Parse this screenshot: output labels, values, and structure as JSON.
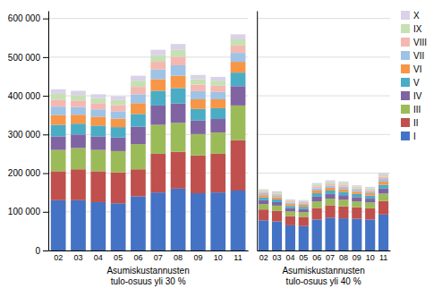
{
  "chart_data": [
    {
      "type": "bar",
      "stacked": true,
      "grid": true,
      "xlabel": "Asumiskustannusten\ntulo-osuus yli 30 %",
      "categories": [
        "02",
        "03",
        "04",
        "05",
        "06",
        "07",
        "08",
        "09",
        "10",
        "11"
      ],
      "series": [
        {
          "name": "I",
          "color": "#4472C4",
          "values": [
            130000,
            130000,
            125000,
            122000,
            140000,
            150000,
            160000,
            148000,
            150000,
            155000
          ]
        },
        {
          "name": "II",
          "color": "#C0504D",
          "values": [
            75000,
            80000,
            80000,
            80000,
            70000,
            100000,
            95000,
            98000,
            100000,
            130000
          ]
        },
        {
          "name": "III",
          "color": "#9BBB59",
          "values": [
            55000,
            55000,
            55000,
            55000,
            65000,
            75000,
            75000,
            55000,
            55000,
            90000
          ]
        },
        {
          "name": "IV",
          "color": "#8064A2",
          "values": [
            35000,
            35000,
            35000,
            35000,
            45000,
            50000,
            50000,
            35000,
            35000,
            50000
          ]
        },
        {
          "name": "V",
          "color": "#4BACC6",
          "values": [
            30000,
            28000,
            28000,
            27000,
            33000,
            38000,
            40000,
            30000,
            28000,
            35000
          ]
        },
        {
          "name": "VI",
          "color": "#F79646",
          "values": [
            25000,
            23000,
            23000,
            22000,
            28000,
            30000,
            32000,
            25000,
            23000,
            28000
          ]
        },
        {
          "name": "VII",
          "color": "#9DC3E6",
          "values": [
            22000,
            20000,
            19000,
            19000,
            23000,
            25000,
            27000,
            21000,
            19000,
            23000
          ]
        },
        {
          "name": "VIII",
          "color": "#F4B8B0",
          "values": [
            18000,
            17000,
            16000,
            16000,
            19000,
            20000,
            22000,
            17000,
            16000,
            19000
          ]
        },
        {
          "name": "IX",
          "color": "#C6E0B4",
          "values": [
            15000,
            14000,
            13000,
            13000,
            16000,
            17000,
            18000,
            14000,
            13000,
            16000
          ]
        },
        {
          "name": "X",
          "color": "#D9D2E9",
          "values": [
            12000,
            11000,
            10000,
            10000,
            13000,
            14000,
            15000,
            11000,
            10000,
            13000
          ]
        }
      ],
      "ylim": [
        0,
        620000
      ],
      "yticks": [
        0,
        {
          "value": 100000,
          "label": "100 000"
        },
        {
          "value": 200000,
          "label": "200 000"
        },
        {
          "value": 300000,
          "label": "300 000"
        },
        {
          "value": 400000,
          "label": "400 000"
        },
        {
          "value": 500000,
          "label": "500 000"
        },
        {
          "value": 600000,
          "label": "600 000"
        }
      ]
    },
    {
      "type": "bar",
      "stacked": true,
      "grid": true,
      "tick_labels": "x",
      "legend": "right",
      "xlabel": "Asumiskustannusten\ntulo-osuus yli 40 %",
      "categories": [
        "02",
        "03",
        "04",
        "05",
        "06",
        "07",
        "08",
        "09",
        "10",
        "11"
      ],
      "series": [
        {
          "name": "I",
          "color": "#4472C4",
          "values": [
            78000,
            75000,
            65000,
            63000,
            80000,
            85000,
            83000,
            82000,
            80000,
            93000
          ]
        },
        {
          "name": "II",
          "color": "#C0504D",
          "values": [
            28000,
            27000,
            24000,
            24000,
            30000,
            32000,
            31000,
            30000,
            29000,
            35000
          ]
        },
        {
          "name": "III",
          "color": "#9BBB59",
          "values": [
            14000,
            14000,
            12000,
            12000,
            17000,
            17000,
            17000,
            15000,
            15000,
            19000
          ]
        },
        {
          "name": "IV",
          "color": "#8064A2",
          "values": [
            10000,
            9000,
            8000,
            8000,
            12000,
            12000,
            12000,
            11000,
            10000,
            13000
          ]
        },
        {
          "name": "V",
          "color": "#4BACC6",
          "values": [
            7000,
            7000,
            6000,
            6000,
            9000,
            9000,
            9000,
            8000,
            8000,
            10000
          ]
        },
        {
          "name": "VI",
          "color": "#F79646",
          "values": [
            6000,
            6000,
            5000,
            5000,
            7000,
            7000,
            7000,
            6000,
            6000,
            8000
          ]
        },
        {
          "name": "VII",
          "color": "#9DC3E6",
          "values": [
            5000,
            5000,
            4000,
            4000,
            6000,
            6000,
            6000,
            5000,
            5000,
            7000
          ]
        },
        {
          "name": "VIII",
          "color": "#F4B8B0",
          "values": [
            4000,
            4000,
            3000,
            3000,
            5000,
            5000,
            5000,
            4000,
            4000,
            6000
          ]
        },
        {
          "name": "IX",
          "color": "#C6E0B4",
          "values": [
            3500,
            3500,
            3000,
            3000,
            4500,
            4500,
            4500,
            4000,
            4000,
            5500
          ]
        },
        {
          "name": "X",
          "color": "#D9D2E9",
          "values": [
            3000,
            3000,
            2500,
            2500,
            4000,
            4000,
            4000,
            3500,
            3500,
            5000
          ]
        }
      ],
      "ylim": [
        0,
        620000
      ],
      "yticks": [
        0,
        100000,
        200000,
        300000,
        400000,
        500000,
        600000
      ]
    }
  ]
}
